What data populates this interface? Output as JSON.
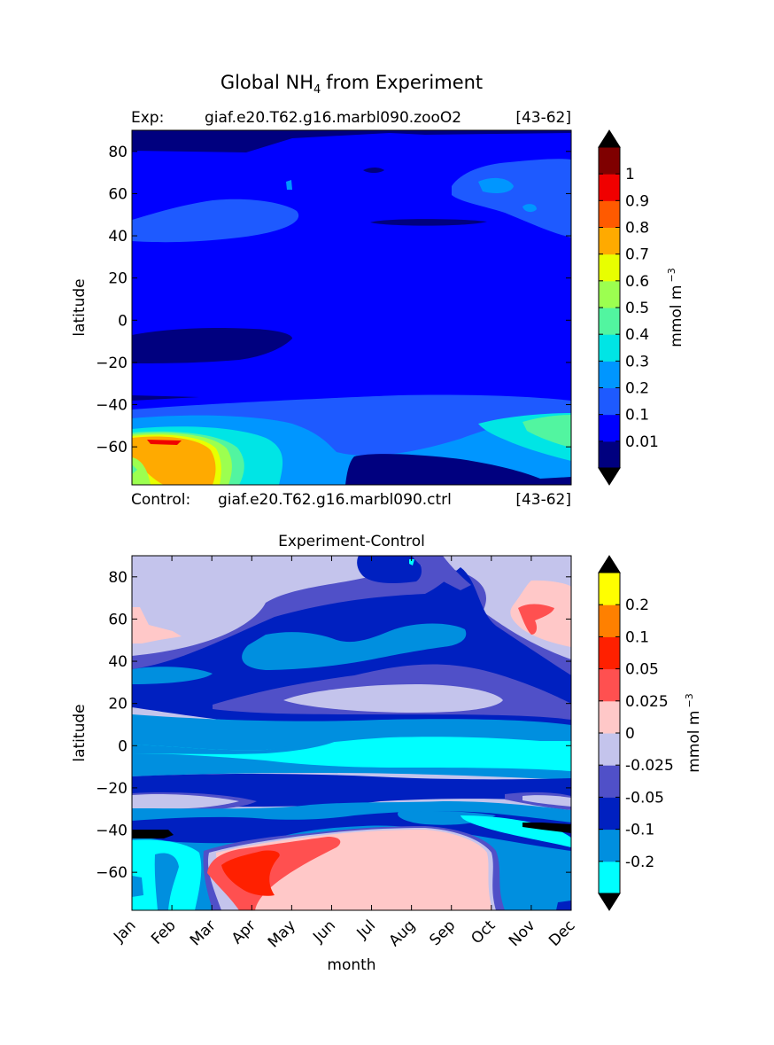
{
  "figure": {
    "title_prefix": "Global NH",
    "title_sub": "4",
    "title_suffix": "from Experiment",
    "exp_label": "Exp:",
    "exp_case": "giaf.e20.T62.g16.marbl090.zooO2",
    "exp_years": "[43-62]",
    "ctrl_label": "Control:",
    "ctrl_case": "giaf.e20.T62.g16.marbl090.ctrl",
    "ctrl_years": "[43-62]",
    "panel2_title": "Experiment-Control"
  },
  "chart_data": [
    {
      "type": "heatmap",
      "title": "Global NH4 from Experiment",
      "ylabel": "latitude",
      "xlabel": "",
      "ylim": [
        -78,
        90
      ],
      "yticks": [
        "80",
        "60",
        "40",
        "20",
        "0",
        "−20",
        "−40",
        "−60"
      ],
      "ytick_values": [
        80,
        60,
        40,
        20,
        0,
        -20,
        -40,
        -60
      ],
      "colorbar_label": "mmol m",
      "colorbar_label_exp": "−3",
      "colorbar_ticks": [
        "1",
        "0.9",
        "0.8",
        "0.7",
        "0.6",
        "0.5",
        "0.4",
        "0.3",
        "0.2",
        "0.1",
        "0.01"
      ],
      "levels": [
        0,
        0.01,
        0.1,
        0.2,
        0.3,
        0.4,
        0.5,
        0.6,
        0.7,
        0.8,
        0.9,
        1
      ],
      "colors": [
        "#00007f",
        "#0000ff",
        "#1e5aff",
        "#0096ff",
        "#00e5e5",
        "#52f5a0",
        "#9cff50",
        "#e8ff00",
        "#ffaa00",
        "#ff5a00",
        "#f00000",
        "#7f0000"
      ],
      "extend": "both",
      "over_color": "#000000",
      "under_color": "#000000"
    },
    {
      "type": "heatmap",
      "title": "Experiment-Control",
      "ylabel": "latitude",
      "xlabel": "month",
      "categories": [
        "Jan",
        "Feb",
        "Mar",
        "Apr",
        "May",
        "Jun",
        "Jul",
        "Aug",
        "Sep",
        "Oct",
        "Nov",
        "Dec"
      ],
      "ylim": [
        -78,
        90
      ],
      "yticks": [
        "80",
        "60",
        "40",
        "20",
        "0",
        "−20",
        "−40",
        "−60"
      ],
      "ytick_values": [
        80,
        60,
        40,
        20,
        0,
        -20,
        -40,
        -60
      ],
      "colorbar_label": "mmol m",
      "colorbar_label_exp": "−3",
      "colorbar_ticks": [
        "0.2",
        "0.1",
        "0.05",
        "0.025",
        "0",
        "-0.025",
        "-0.05",
        "-0.1",
        "-0.2"
      ],
      "levels": [
        -0.2,
        -0.1,
        -0.05,
        -0.025,
        0,
        0.025,
        0.05,
        0.1,
        0.2
      ],
      "colors": [
        "#00ffff",
        "#008fdf",
        "#0020c0",
        "#5050c8",
        "#c4c4ec",
        "#ffc8c8",
        "#ff5050",
        "#ff2000",
        "#ff8000",
        "#ffff00"
      ],
      "extend": "both",
      "over_color": "#000000",
      "under_color": "#000000"
    }
  ]
}
